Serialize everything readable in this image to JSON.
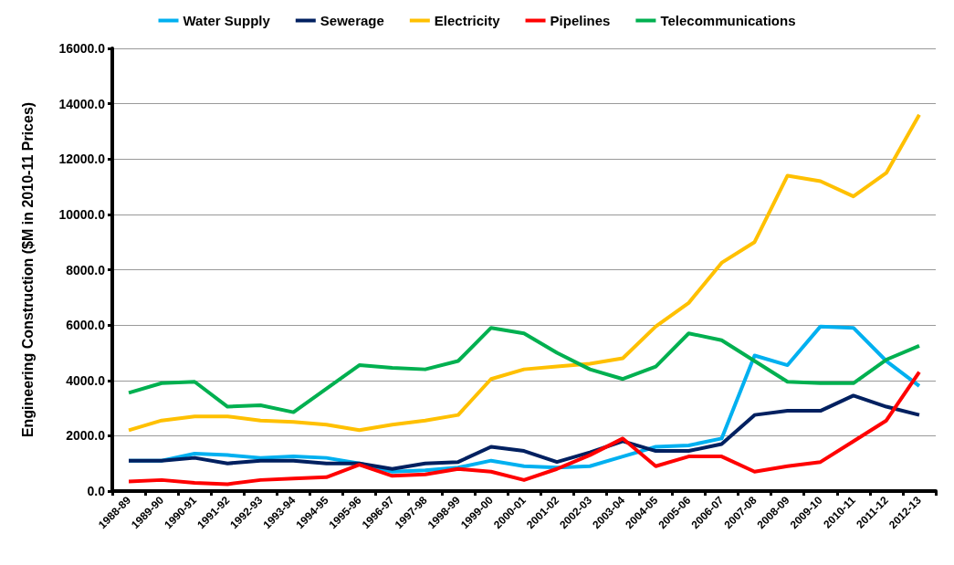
{
  "chart_data": {
    "type": "line",
    "ylabel": "Engineering Construction ($M in 2010-11 Prices)",
    "categories": [
      "1988-89",
      "1989-90",
      "1990-91",
      "1991-92",
      "1992-93",
      "1993-94",
      "1994-95",
      "1995-96",
      "1996-97",
      "1997-98",
      "1998-99",
      "1999-00",
      "2000-01",
      "2001-02",
      "2002-03",
      "2003-04",
      "2004-05",
      "2005-06",
      "2006-07",
      "2007-08",
      "2008-09",
      "2009-10",
      "2010-11",
      "2011-12",
      "2012-13"
    ],
    "series": [
      {
        "name": "Water Supply",
        "color": "#00b0f0",
        "values": [
          1100,
          1100,
          1350,
          1300,
          1200,
          1250,
          1200,
          1000,
          700,
          750,
          850,
          1100,
          900,
          850,
          900,
          1250,
          1600,
          1650,
          1900,
          4900,
          4550,
          5950,
          5900,
          4700,
          3800
        ]
      },
      {
        "name": "Sewerage",
        "color": "#002060",
        "values": [
          1100,
          1100,
          1200,
          1000,
          1100,
          1100,
          1000,
          1000,
          800,
          1000,
          1050,
          1600,
          1450,
          1050,
          1400,
          1800,
          1450,
          1450,
          1700,
          2750,
          2900,
          2900,
          3450,
          3050,
          2750
        ]
      },
      {
        "name": "Electricity",
        "color": "#ffc000",
        "values": [
          2200,
          2550,
          2700,
          2700,
          2550,
          2500,
          2400,
          2200,
          2400,
          2550,
          2750,
          4050,
          4400,
          4500,
          4600,
          4800,
          5950,
          6800,
          8250,
          9000,
          11400,
          11200,
          10650,
          11500,
          13600
        ]
      },
      {
        "name": "Pipelines",
        "color": "#ff0000",
        "values": [
          350,
          400,
          300,
          250,
          400,
          450,
          500,
          950,
          550,
          600,
          800,
          700,
          400,
          800,
          1300,
          1900,
          900,
          1250,
          1250,
          700,
          900,
          1050,
          1800,
          2550,
          4300
        ]
      },
      {
        "name": "Telecommunications",
        "color": "#00b050",
        "values": [
          3550,
          3900,
          3950,
          3050,
          3100,
          2850,
          3700,
          4550,
          4450,
          4400,
          4700,
          5900,
          5700,
          5000,
          4400,
          4050,
          4500,
          5700,
          5450,
          4700,
          3950,
          3900,
          3900,
          4750,
          5250
        ]
      }
    ],
    "ylim": [
      0,
      16000
    ],
    "yticks": [
      {
        "value": 0,
        "label": "0.0"
      },
      {
        "value": 2000,
        "label": "2000.0"
      },
      {
        "value": 4000,
        "label": "4000.0"
      },
      {
        "value": 6000,
        "label": "6000.0"
      },
      {
        "value": 8000,
        "label": "8000.0"
      },
      {
        "value": 10000,
        "label": "10000.0"
      },
      {
        "value": 12000,
        "label": "12000.0"
      },
      {
        "value": 14000,
        "label": "14000.0"
      },
      {
        "value": 16000,
        "label": "16000.0"
      }
    ],
    "grid": "y",
    "legend": "top",
    "marker": "none",
    "line_style": "solid"
  }
}
